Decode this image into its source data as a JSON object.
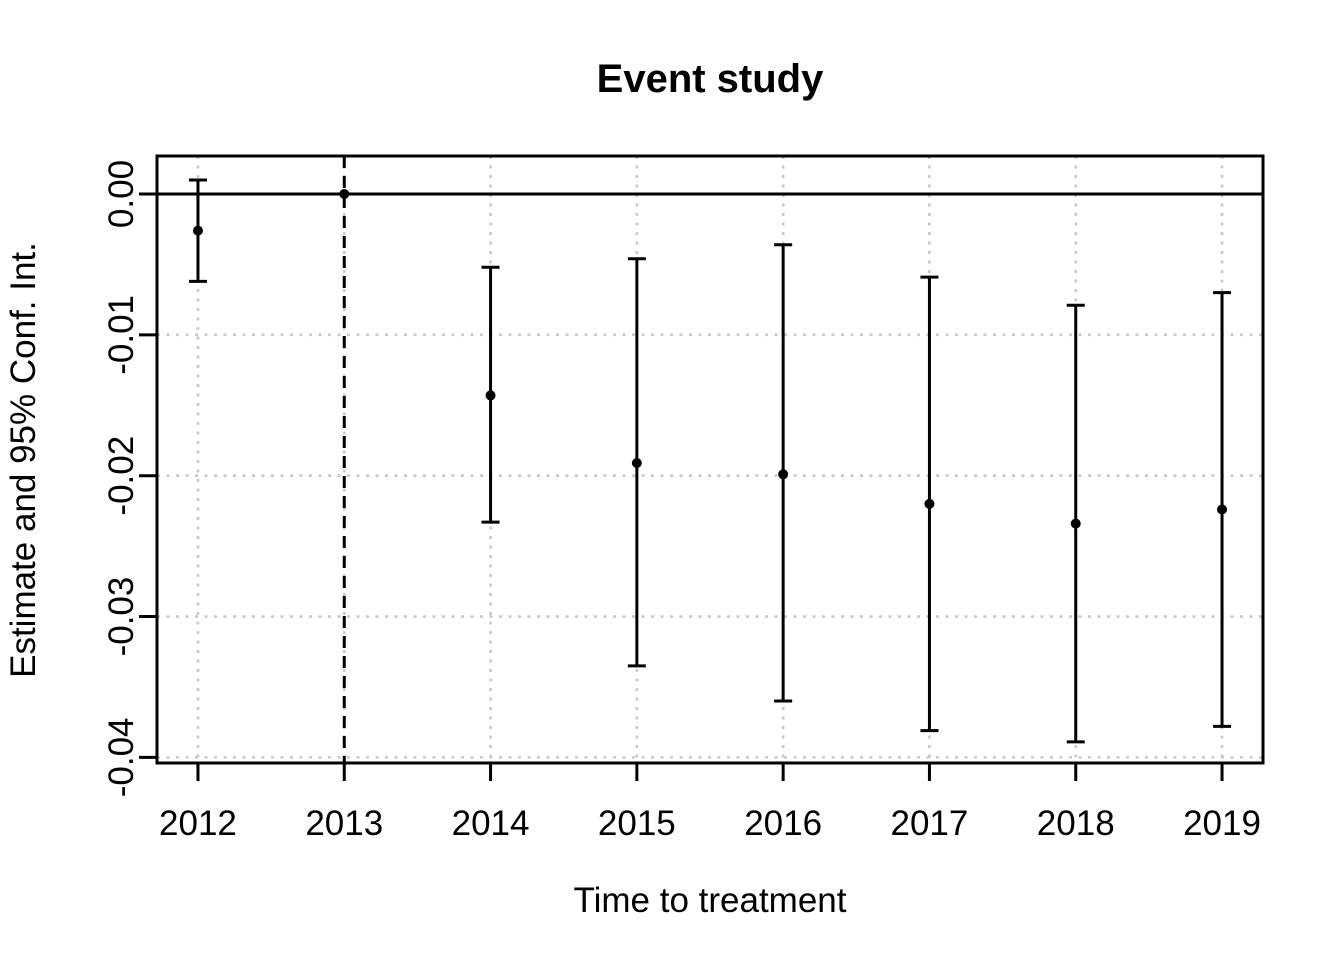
{
  "figure": {
    "background": "#FFFFFF"
  },
  "chart_data": {
    "type": "scatter",
    "subtype": "event-study-error-bars",
    "title": "Event study",
    "xlabel": "Time to treatment",
    "ylabel": "Estimate and 95% Conf. Int.",
    "x_tick_labels": [
      "2012",
      "2013",
      "2014",
      "2015",
      "2016",
      "2017",
      "2018",
      "2019"
    ],
    "x_ticks": [
      2012,
      2013,
      2014,
      2015,
      2016,
      2017,
      2018,
      2019
    ],
    "y_tick_labels": [
      "0.00",
      "-0.01",
      "-0.02",
      "-0.03",
      "-0.04"
    ],
    "y_ticks": [
      0,
      -0.01,
      -0.02,
      -0.03,
      -0.04
    ],
    "xlim": [
      2011.72,
      2019.28
    ],
    "ylim": [
      -0.0404,
      0.0027
    ],
    "grid": true,
    "legend": "none",
    "series": [
      {
        "name": "Estimate and 95% CI",
        "points": [
          {
            "x": 2012,
            "estimate": -0.0026,
            "ci_low": -0.0062,
            "ci_high": 0.001,
            "reference": false
          },
          {
            "x": 2013,
            "estimate": 0.0,
            "ci_low": 0.0,
            "ci_high": 0.0,
            "reference": true
          },
          {
            "x": 2014,
            "estimate": -0.0143,
            "ci_low": -0.0233,
            "ci_high": -0.0052,
            "reference": false
          },
          {
            "x": 2015,
            "estimate": -0.0191,
            "ci_low": -0.0335,
            "ci_high": -0.0046,
            "reference": false
          },
          {
            "x": 2016,
            "estimate": -0.0199,
            "ci_low": -0.036,
            "ci_high": -0.0036,
            "reference": false
          },
          {
            "x": 2017,
            "estimate": -0.022,
            "ci_low": -0.0381,
            "ci_high": -0.0059,
            "reference": false
          },
          {
            "x": 2018,
            "estimate": -0.0234,
            "ci_low": -0.0389,
            "ci_high": -0.0079,
            "reference": false
          },
          {
            "x": 2019,
            "estimate": -0.0224,
            "ci_low": -0.0378,
            "ci_high": -0.007,
            "reference": false
          }
        ]
      }
    ],
    "reference_lines": {
      "horizontal_y": 0,
      "horizontal_style": "solid",
      "vertical_x": 2013,
      "vertical_style": "dashed"
    },
    "colors": {
      "points": "#000000",
      "error_bars": "#000000",
      "frame": "#000000",
      "reference_lines": "#000000",
      "grid": "#C9C9C9",
      "text": "#000000",
      "background": "#FFFFFF"
    }
  }
}
